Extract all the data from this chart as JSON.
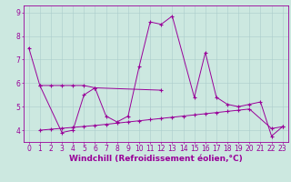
{
  "line1_x": [
    0,
    1,
    3,
    4,
    5,
    6,
    7,
    8,
    9,
    10,
    11,
    12,
    13,
    15,
    16,
    17,
    18,
    19,
    20,
    21,
    22,
    23
  ],
  "line1_y": [
    7.5,
    5.9,
    3.9,
    4.0,
    5.5,
    5.8,
    4.6,
    4.35,
    4.6,
    6.7,
    8.6,
    8.5,
    8.85,
    5.4,
    7.3,
    5.4,
    5.1,
    5.0,
    5.1,
    5.2,
    3.75,
    4.15
  ],
  "line2_x": [
    1,
    2,
    3,
    4,
    5,
    6,
    12
  ],
  "line2_y": [
    5.9,
    5.9,
    5.9,
    5.9,
    5.9,
    5.8,
    5.7
  ],
  "line3_x": [
    1,
    2,
    3,
    4,
    5,
    6,
    7,
    8,
    9,
    10,
    11,
    12,
    13,
    14,
    15,
    16,
    17,
    18,
    19,
    20,
    22,
    23
  ],
  "line3_y": [
    4.0,
    4.04,
    4.08,
    4.12,
    4.16,
    4.2,
    4.25,
    4.3,
    4.35,
    4.4,
    4.45,
    4.5,
    4.55,
    4.6,
    4.65,
    4.7,
    4.75,
    4.8,
    4.85,
    4.9,
    4.07,
    4.15
  ],
  "ylim": [
    3.5,
    9.3
  ],
  "xlim": [
    -0.5,
    23.5
  ],
  "bg_color": "#cce8e0",
  "line_color": "#990099",
  "grid_color": "#aacccc",
  "xlabel": "Windchill (Refroidissement éolien,°C)",
  "xlabel_fontsize": 6.5,
  "tick_fontsize": 5.5,
  "yticks": [
    4,
    5,
    6,
    7,
    8,
    9
  ]
}
